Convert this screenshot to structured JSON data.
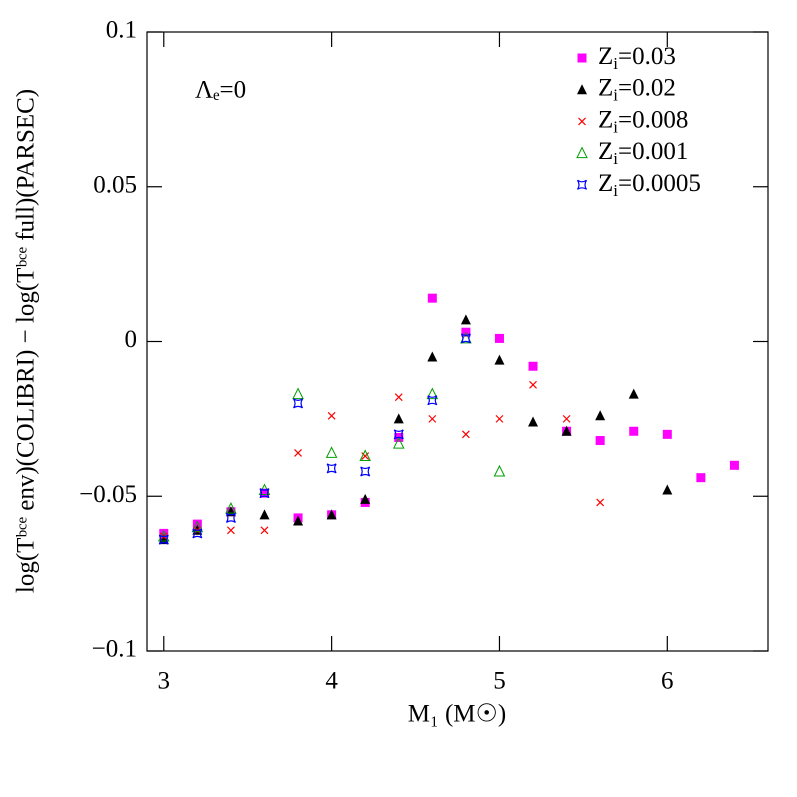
{
  "chart_data": {
    "type": "scatter",
    "xlabel": "M₁ (M☉)",
    "ylabel": "log(Tᵇᶜᵉ env)(COLIBRI) − log(Tᵇᶜᵉ full)(PARSEC)",
    "annotation": "Λₑ=0",
    "xlim": [
      2.9,
      6.6
    ],
    "ylim": [
      -0.1,
      0.1
    ],
    "xticks": [
      3,
      4,
      5,
      6
    ],
    "yticks": [
      {
        "value": -0.1,
        "label": "−0.1"
      },
      {
        "value": -0.05,
        "label": "−0.05"
      },
      0,
      0.05,
      0.1
    ],
    "legend": "upper right",
    "series": [
      {
        "name": "Zi=0.03",
        "color": "#ff00ff",
        "marker": "square",
        "x": [
          3.0,
          3.2,
          3.4,
          3.6,
          3.8,
          4.0,
          4.2,
          4.4,
          4.6,
          4.8,
          5.0,
          5.2,
          5.4,
          5.6,
          5.8,
          6.0,
          6.2,
          6.4
        ],
        "values": [
          -0.062,
          -0.059,
          -0.055,
          -0.049,
          -0.057,
          -0.056,
          -0.052,
          -0.031,
          0.014,
          0.003,
          0.001,
          -0.008,
          -0.029,
          -0.032,
          -0.029,
          -0.03,
          -0.044,
          -0.04
        ]
      },
      {
        "name": "Zi=0.02",
        "color": "#000000",
        "marker": "triangle",
        "x": [
          3.0,
          3.2,
          3.4,
          3.6,
          3.8,
          4.0,
          4.2,
          4.4,
          4.6,
          4.8,
          5.0,
          5.2,
          5.4,
          5.6,
          5.8,
          6.0
        ],
        "values": [
          -0.064,
          -0.061,
          -0.055,
          -0.056,
          -0.058,
          -0.056,
          -0.051,
          -0.025,
          -0.005,
          0.007,
          -0.006,
          -0.026,
          -0.029,
          -0.024,
          -0.017,
          -0.048
        ]
      },
      {
        "name": "Zi=0.008",
        "color": "#ff0000",
        "marker": "cross",
        "x": [
          3.0,
          3.2,
          3.4,
          3.6,
          3.8,
          4.0,
          4.2,
          4.4,
          4.6,
          4.8,
          5.0,
          5.2,
          5.4,
          5.6
        ],
        "values": [
          -0.063,
          -0.061,
          -0.061,
          -0.061,
          -0.036,
          -0.024,
          -0.037,
          -0.018,
          -0.025,
          -0.03,
          -0.025,
          -0.014,
          -0.025,
          -0.052
        ]
      },
      {
        "name": "Zi=0.001",
        "color": "#00a000",
        "marker": "open-triangle",
        "x": [
          3.0,
          3.2,
          3.4,
          3.6,
          3.8,
          4.0,
          4.2,
          4.4,
          4.6,
          4.8,
          5.0
        ],
        "values": [
          -0.063,
          -0.06,
          -0.054,
          -0.048,
          -0.017,
          -0.036,
          -0.037,
          -0.033,
          -0.017,
          0.001,
          -0.042
        ]
      },
      {
        "name": "Zi=0.0005",
        "color": "#0000ff",
        "marker": "star",
        "x": [
          3.0,
          3.2,
          3.4,
          3.6,
          3.8,
          4.0,
          4.2,
          4.4,
          4.6,
          4.8
        ],
        "values": [
          -0.064,
          -0.062,
          -0.057,
          -0.049,
          -0.02,
          -0.041,
          -0.042,
          -0.03,
          -0.019,
          0.001
        ]
      }
    ]
  }
}
